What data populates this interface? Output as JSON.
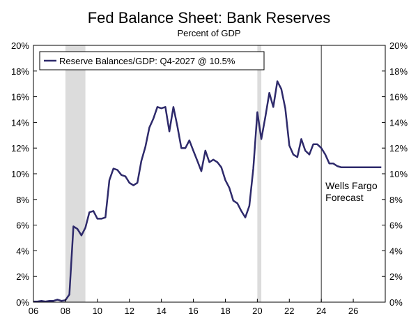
{
  "chart_data": {
    "type": "line",
    "title": "Fed Balance Sheet: Bank Reserves",
    "subtitle": "Percent of GDP",
    "xlabel": "",
    "ylabel": "",
    "xlim": [
      2006,
      2028
    ],
    "ylim": [
      0,
      20
    ],
    "x_ticks": [
      {
        "value": 2006,
        "label": "06"
      },
      {
        "value": 2008,
        "label": "08"
      },
      {
        "value": 2010,
        "label": "10"
      },
      {
        "value": 2012,
        "label": "12"
      },
      {
        "value": 2014,
        "label": "14"
      },
      {
        "value": 2016,
        "label": "16"
      },
      {
        "value": 2018,
        "label": "18"
      },
      {
        "value": 2020,
        "label": "20"
      },
      {
        "value": 2022,
        "label": "22"
      },
      {
        "value": 2024,
        "label": "24"
      },
      {
        "value": 2026,
        "label": "26"
      }
    ],
    "y_ticks": [
      {
        "value": 0,
        "label": "0%"
      },
      {
        "value": 2,
        "label": "2%"
      },
      {
        "value": 4,
        "label": "4%"
      },
      {
        "value": 6,
        "label": "6%"
      },
      {
        "value": 8,
        "label": "8%"
      },
      {
        "value": 10,
        "label": "10%"
      },
      {
        "value": 12,
        "label": "12%"
      },
      {
        "value": 14,
        "label": "14%"
      },
      {
        "value": 16,
        "label": "16%"
      },
      {
        "value": 18,
        "label": "18%"
      },
      {
        "value": 20,
        "label": "20%"
      }
    ],
    "grid": false,
    "legend_position": "top-left",
    "recession_shading": [
      {
        "start": 2008.0,
        "end": 2009.25
      },
      {
        "start": 2020.0,
        "end": 2020.25
      }
    ],
    "forecast_line": {
      "x": 2024.0,
      "label_lines": [
        "Wells Fargo",
        "Forecast"
      ]
    },
    "series": [
      {
        "name": "Reserve Balances/GDP: Q4-2027 @ 10.5%",
        "color": "#2e2a6b",
        "x": [
          2006.0,
          2006.25,
          2006.5,
          2006.75,
          2007.0,
          2007.25,
          2007.5,
          2007.75,
          2008.0,
          2008.25,
          2008.5,
          2008.75,
          2009.0,
          2009.25,
          2009.5,
          2009.75,
          2010.0,
          2010.25,
          2010.5,
          2010.75,
          2011.0,
          2011.25,
          2011.5,
          2011.75,
          2012.0,
          2012.25,
          2012.5,
          2012.75,
          2013.0,
          2013.25,
          2013.5,
          2013.75,
          2014.0,
          2014.25,
          2014.5,
          2014.75,
          2015.0,
          2015.25,
          2015.5,
          2015.75,
          2016.0,
          2016.25,
          2016.5,
          2016.75,
          2017.0,
          2017.25,
          2017.5,
          2017.75,
          2018.0,
          2018.25,
          2018.5,
          2018.75,
          2019.0,
          2019.25,
          2019.5,
          2019.75,
          2020.0,
          2020.25,
          2020.5,
          2020.75,
          2021.0,
          2021.25,
          2021.5,
          2021.75,
          2022.0,
          2022.25,
          2022.5,
          2022.75,
          2023.0,
          2023.25,
          2023.5,
          2023.75,
          2024.0,
          2024.25,
          2024.5,
          2024.75,
          2025.0,
          2025.25,
          2025.5,
          2025.75,
          2026.0,
          2026.25,
          2026.5,
          2026.75,
          2027.0,
          2027.25,
          2027.5,
          2027.75
        ],
        "values": [
          0.05,
          0.05,
          0.1,
          0.05,
          0.1,
          0.1,
          0.2,
          0.1,
          0.15,
          0.6,
          5.9,
          5.7,
          5.2,
          5.8,
          7.0,
          7.1,
          6.5,
          6.5,
          6.6,
          9.5,
          10.4,
          10.3,
          9.9,
          9.8,
          9.3,
          9.1,
          9.3,
          11.0,
          12.1,
          13.6,
          14.3,
          15.2,
          15.1,
          15.2,
          13.3,
          15.2,
          13.7,
          12.0,
          12.0,
          12.6,
          11.8,
          11.0,
          10.2,
          11.8,
          10.9,
          11.1,
          10.9,
          10.5,
          9.5,
          8.9,
          7.9,
          7.7,
          7.1,
          6.6,
          7.5,
          10.4,
          14.8,
          12.7,
          14.4,
          16.3,
          15.2,
          17.2,
          16.6,
          15.1,
          12.2,
          11.5,
          11.3,
          12.7,
          11.8,
          11.5,
          12.3,
          12.3,
          12.0,
          11.5,
          10.8,
          10.8,
          10.6,
          10.5,
          10.5,
          10.5,
          10.5,
          10.5,
          10.5,
          10.5,
          10.5,
          10.5,
          10.5,
          10.5
        ]
      }
    ]
  }
}
